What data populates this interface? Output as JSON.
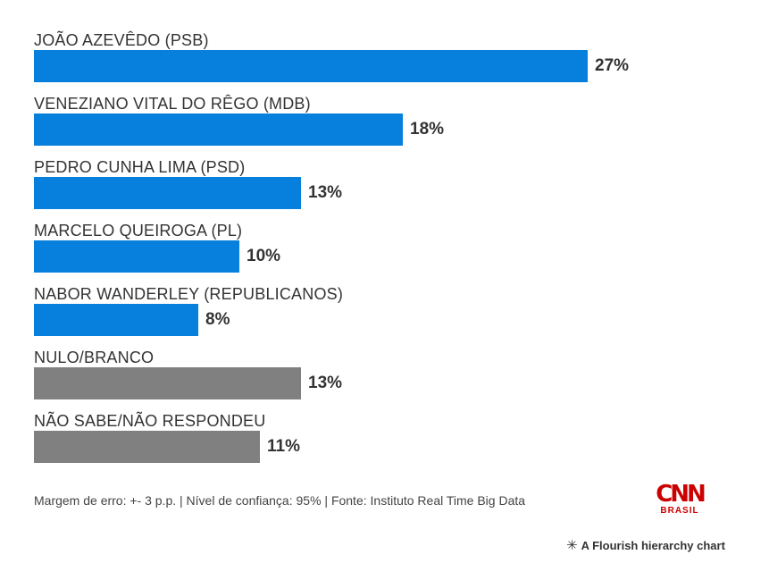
{
  "chart_data": {
    "type": "bar",
    "orientation": "horizontal",
    "categories": [
      "JOÃO AZEVÊDO (PSB)",
      "VENEZIANO VITAL DO RÊGO (MDB)",
      "PEDRO CUNHA LIMA (PSD)",
      "MARCELO QUEIROGA (PL)",
      "NABOR WANDERLEY (REPUBLICANOS)",
      "NULO/BRANCO",
      "NÃO SABE/NÃO RESPONDEU"
    ],
    "values": [
      27,
      18,
      13,
      10,
      8,
      13,
      11
    ],
    "value_labels": [
      "27%",
      "18%",
      "13%",
      "10%",
      "8%",
      "13%",
      "11%"
    ],
    "colors": [
      "#0680dc",
      "#0680dc",
      "#0680dc",
      "#0680dc",
      "#0680dc",
      "#808080",
      "#808080"
    ],
    "title": "",
    "xlabel": "",
    "ylabel": "",
    "xlim": [
      0,
      27
    ],
    "grid": false,
    "legend": "none"
  },
  "footer": {
    "note": "Margem de erro: +- 3 p.p. | Nível de confiança: 95% | Fonte: Instituto Real Time Big Data",
    "logo_text": "CNN",
    "logo_sub": "BRASIL",
    "logo_icon": "cnn-brasil-logo",
    "credit_icon": "flourish-asterisk-icon",
    "credit": "A Flourish hierarchy chart"
  }
}
